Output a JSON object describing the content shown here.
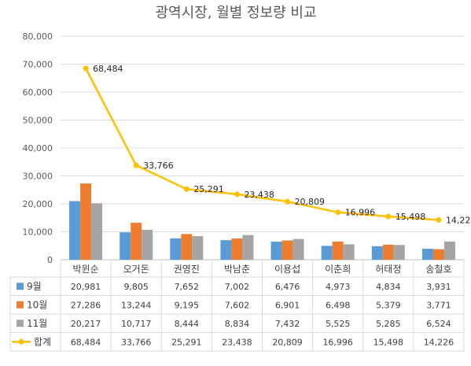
{
  "chart_data": {
    "type": "bar",
    "title": "광역시장, 월별 정보량 비교",
    "categories": [
      "박윈순",
      "오거돈",
      "권영진",
      "박남춘",
      "이용섭",
      "이춘희",
      "허태정",
      "송철호"
    ],
    "ylim": [
      0,
      80000
    ],
    "yticks": [
      "0",
      "10,000",
      "20,000",
      "30,000",
      "40,000",
      "50,000",
      "60,000",
      "70,000",
      "80,000"
    ],
    "grid": true,
    "legend": "data-table",
    "series": [
      {
        "name": "9월",
        "kind": "bar",
        "color": "#5B9BD5",
        "values": [
          20981,
          9805,
          7652,
          7002,
          6476,
          4973,
          4834,
          3931
        ],
        "labels": [
          "20,981",
          "9,805",
          "7,652",
          "7,002",
          "6,476",
          "4,973",
          "4,834",
          "3,931"
        ]
      },
      {
        "name": "10월",
        "kind": "bar",
        "color": "#ED7D31",
        "values": [
          27286,
          13244,
          9195,
          7602,
          6901,
          6498,
          5379,
          3771
        ],
        "labels": [
          "27,286",
          "13,244",
          "9,195",
          "7,602",
          "6,901",
          "6,498",
          "5,379",
          "3,771"
        ]
      },
      {
        "name": "11월",
        "kind": "bar",
        "color": "#A5A5A5",
        "values": [
          20217,
          10717,
          8444,
          8834,
          7432,
          5525,
          5285,
          6524
        ],
        "labels": [
          "20,217",
          "10,717",
          "8,444",
          "8,834",
          "7,432",
          "5,525",
          "5,285",
          "6,524"
        ]
      },
      {
        "name": "합계",
        "kind": "line",
        "color": "#FFC000",
        "values": [
          68484,
          33766,
          25291,
          23438,
          20809,
          16996,
          15498,
          14226
        ],
        "labels": [
          "68,484",
          "33,766",
          "25,291",
          "23,438",
          "20,809",
          "16,996",
          "15,498",
          "14,226"
        ]
      }
    ]
  }
}
